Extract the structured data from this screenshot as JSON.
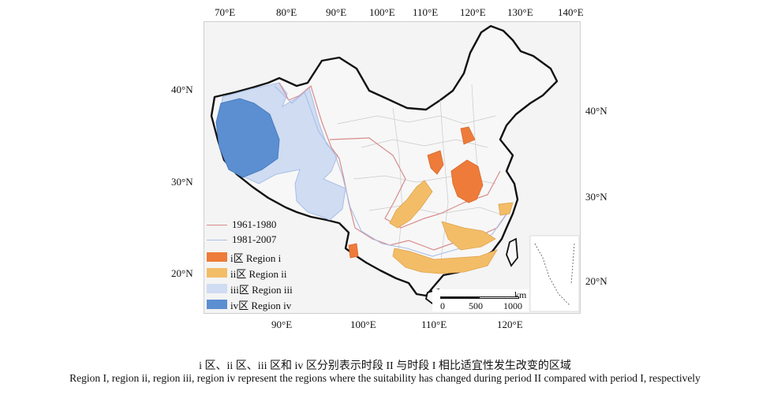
{
  "axes": {
    "top_lon": [
      "70°E",
      "80°E",
      "90°E",
      "100°E",
      "110°E",
      "120°E",
      "130°E",
      "140°E"
    ],
    "bottom_lon": [
      "90°E",
      "100°E",
      "110°E",
      "120°E"
    ],
    "left_lat": [
      "40°N",
      "30°N",
      "20°N"
    ],
    "right_lat": [
      "40°N",
      "30°N",
      "20°N"
    ]
  },
  "legend": {
    "line_1961": "1961-1980",
    "line_1981": "1981-2007",
    "region_i": "i区 Region i",
    "region_ii": "ii区 Region ii",
    "region_iii": "iii区 Region iii",
    "region_iv": "iv区 Region iv"
  },
  "colors": {
    "line_1961": "#d98a8a",
    "line_1981": "#a9bfe6",
    "region_i": "#ee7b3a",
    "region_ii": "#f3bd68",
    "region_iii": "#cfdcf2",
    "region_iv": "#5b8fd1",
    "land": "#f7f7f7",
    "border": "#111111"
  },
  "scalebar": {
    "unit": "km",
    "ticks": [
      "0",
      "500",
      "1000"
    ]
  },
  "caption": {
    "chinese": "i 区、ii 区、iii 区和 iv 区分别表示时段 II 与时段 I 相比适宜性发生改变的区域",
    "english": "Region I, region ii, region iii, region iv represent the regions where the suitability has changed during period II compared with period I, respectively"
  }
}
